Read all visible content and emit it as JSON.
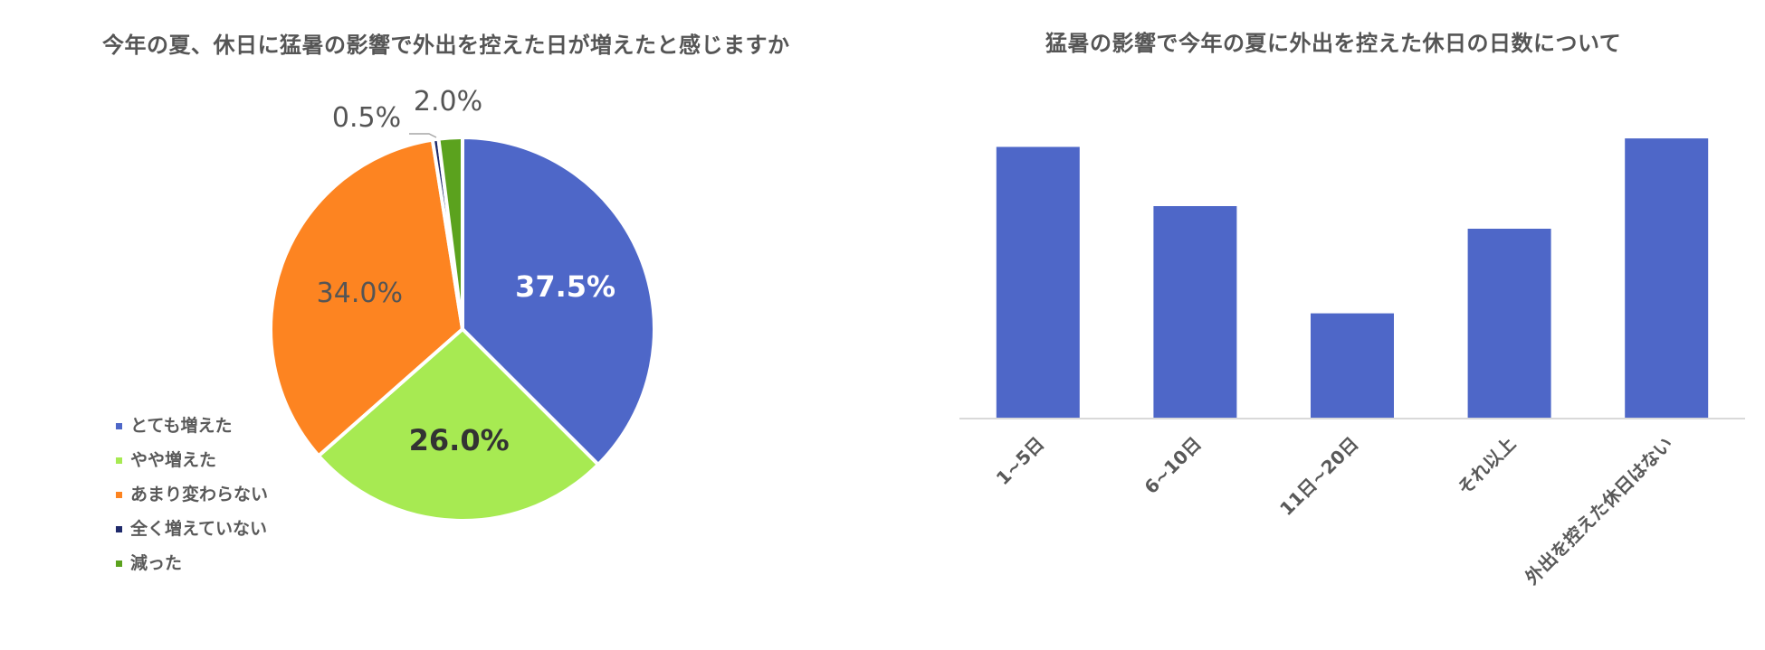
{
  "chart_data": [
    {
      "type": "pie",
      "title": "今年の夏、休日に猛暑の影響で外出を控えた日が増えたと感じますか",
      "slices": [
        {
          "label": "とても増えた",
          "value": 37.5,
          "value_label": "37.5%",
          "color": "#4e67c8"
        },
        {
          "label": "やや増えた",
          "value": 26.0,
          "value_label": "26.0%",
          "color": "#a7ea52"
        },
        {
          "label": "あまり変わらない",
          "value": 34.0,
          "value_label": "34.0%",
          "color": "#fd8421"
        },
        {
          "label": "全く増えていない",
          "value": 0.5,
          "value_label": "0.5%",
          "color": "#1f2a6b"
        },
        {
          "label": "減った",
          "value": 2.0,
          "value_label": "2.0%",
          "color": "#5ba21e"
        }
      ],
      "legend_position": "bottom-left"
    },
    {
      "type": "bar",
      "title": "猛暑の影響で今年の夏に外出を控えた休日の日数について",
      "categories": [
        "1~5日",
        "6~10日",
        "11日~20日",
        "それ以上",
        "外出を控えた休日はない"
      ],
      "values": [
        96,
        75,
        37,
        67,
        99
      ],
      "value_scale": "relative (no value axis printed)",
      "color": "#4e67c8",
      "grid": false
    }
  ]
}
